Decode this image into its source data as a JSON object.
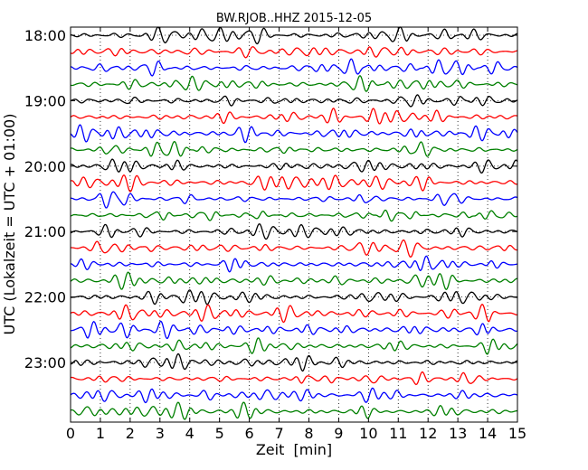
{
  "chart_data": {
    "type": "line",
    "title": "BW.RJOB..HHZ 2015-12-05",
    "xlabel": "Zeit  [min]",
    "ylabel": "UTC (Lokalzeit = UTC + 01:00)",
    "xlim": [
      0,
      15
    ],
    "x_ticks": [
      0,
      1,
      2,
      3,
      4,
      5,
      6,
      7,
      8,
      9,
      10,
      11,
      12,
      13,
      14,
      15
    ],
    "y_tick_labels": [
      "18:00",
      "19:00",
      "20:00",
      "21:00",
      "22:00",
      "23:00"
    ],
    "y_tick_every_n_traces": 4,
    "trace_count": 24,
    "trace_interval_minutes": 15,
    "series_colors": [
      "#000000",
      "#ff0000",
      "#0000ff",
      "#008000"
    ],
    "grid": true
  }
}
